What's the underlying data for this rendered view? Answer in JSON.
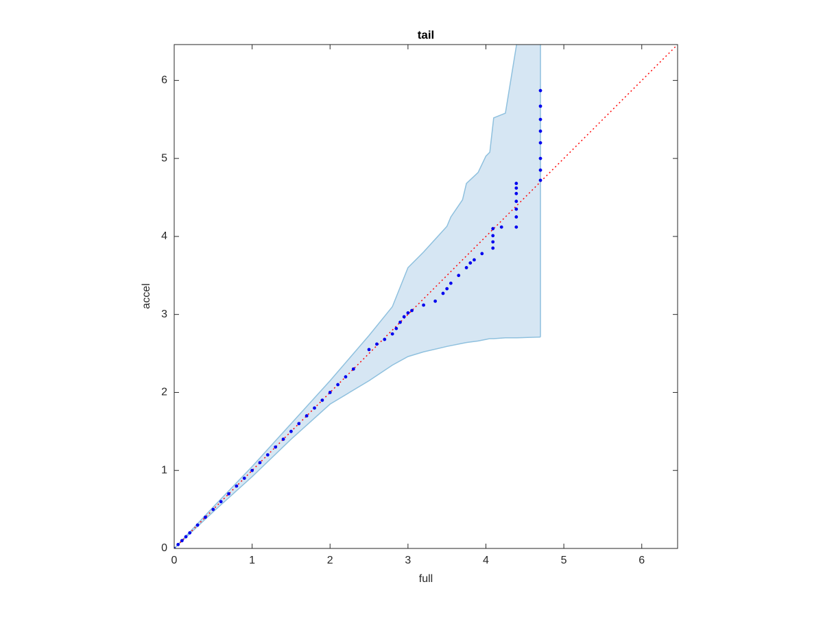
{
  "chart_data": {
    "type": "scatter",
    "title": "tail",
    "x_label": "full",
    "y_label": "accel",
    "xlim": [
      0,
      6.46
    ],
    "ylim": [
      0,
      6.46
    ],
    "xticks": [
      0,
      1,
      2,
      3,
      4,
      5,
      6
    ],
    "yticks": [
      0,
      1,
      2,
      3,
      4,
      5,
      6
    ],
    "grid": false,
    "diagonal": true,
    "diagonal_color": "#ff0000",
    "band": {
      "color": "#d6e6f3",
      "edge_color": "#8ec0de",
      "x": [
        0,
        0.5,
        1,
        1.5,
        2,
        2.5,
        2.8,
        3,
        3.2,
        3.5,
        3.55,
        3.7,
        3.75,
        3.9,
        4.0,
        4.05,
        4.1,
        4.25,
        4.4,
        4.7
      ],
      "upper": [
        0,
        0.53,
        1.05,
        1.6,
        2.15,
        2.73,
        3.1,
        3.6,
        3.8,
        4.13,
        4.25,
        4.47,
        4.68,
        4.82,
        5.03,
        5.08,
        5.52,
        5.58,
        6.5,
        6.5
      ],
      "lower": [
        0,
        0.47,
        0.92,
        1.4,
        1.85,
        2.15,
        2.35,
        2.46,
        2.52,
        2.59,
        2.6,
        2.63,
        2.64,
        2.66,
        2.68,
        2.69,
        2.69,
        2.7,
        2.7,
        2.71
      ]
    },
    "points": {
      "color": "#0000ee",
      "x": [
        0,
        0.05,
        0.1,
        0.15,
        0.2,
        0.3,
        0.4,
        0.5,
        0.6,
        0.7,
        0.8,
        0.9,
        1.0,
        1.1,
        1.2,
        1.3,
        1.4,
        1.5,
        1.6,
        1.7,
        1.8,
        1.9,
        2.0,
        2.1,
        2.2,
        2.3,
        2.5,
        2.6,
        2.7,
        2.8,
        2.85,
        2.9,
        2.95,
        3.0,
        3.05,
        3.2,
        3.35,
        3.45,
        3.5,
        3.55,
        3.65,
        3.75,
        3.8,
        3.85,
        3.95,
        4.09,
        4.09,
        4.09,
        4.09,
        4.2,
        4.39,
        4.39,
        4.39,
        4.39,
        4.39,
        4.39,
        4.39,
        4.7,
        4.7,
        4.7,
        4.7,
        4.7,
        4.7,
        4.7,
        4.7
      ],
      "y": [
        0,
        0.05,
        0.1,
        0.15,
        0.2,
        0.3,
        0.4,
        0.5,
        0.6,
        0.7,
        0.8,
        0.9,
        1.0,
        1.1,
        1.2,
        1.3,
        1.4,
        1.5,
        1.6,
        1.7,
        1.8,
        1.9,
        2.0,
        2.1,
        2.2,
        2.3,
        2.55,
        2.62,
        2.68,
        2.75,
        2.82,
        2.9,
        2.97,
        3.02,
        3.05,
        3.12,
        3.17,
        3.27,
        3.33,
        3.4,
        3.5,
        3.6,
        3.66,
        3.7,
        3.78,
        3.85,
        3.93,
        4.01,
        4.1,
        4.12,
        4.12,
        4.25,
        4.35,
        4.45,
        4.55,
        4.62,
        4.68,
        4.72,
        4.85,
        5.0,
        5.2,
        5.35,
        5.5,
        5.67,
        5.87
      ]
    }
  }
}
